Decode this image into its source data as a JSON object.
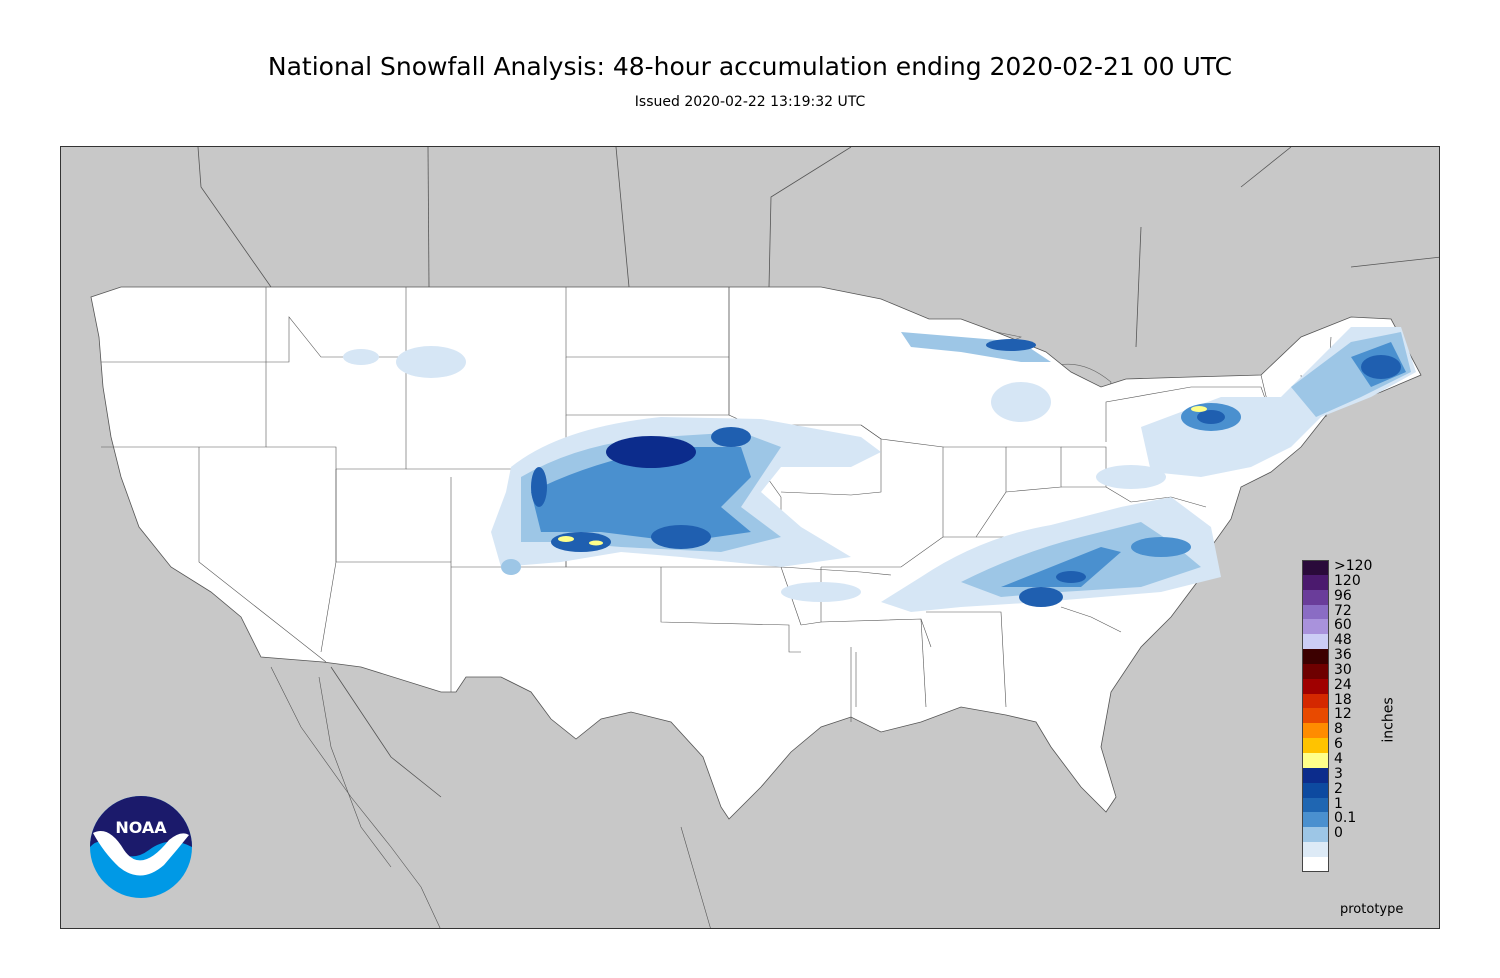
{
  "header": {
    "title": "National Snowfall Analysis: 48-hour accumulation ending 2020-02-21 00 UTC",
    "subtitle": "Issued 2020-02-22 13:19:32 UTC"
  },
  "legend": {
    "unit_label": "inches",
    "levels": [
      {
        "label": ">120",
        "color": "#2a0a3a"
      },
      {
        "label": "120",
        "color": "#4b1a6e"
      },
      {
        "label": "96",
        "color": "#6a3d9a"
      },
      {
        "label": "72",
        "color": "#8a6cc4"
      },
      {
        "label": "60",
        "color": "#a992dc"
      },
      {
        "label": "48",
        "color": "#cccdf5"
      },
      {
        "label": "36",
        "color": "#3c0000"
      },
      {
        "label": "30",
        "color": "#6e0000"
      },
      {
        "label": "24",
        "color": "#a00000"
      },
      {
        "label": "18",
        "color": "#d42800"
      },
      {
        "label": "12",
        "color": "#e84a00"
      },
      {
        "label": "8",
        "color": "#ff8c00"
      },
      {
        "label": "6",
        "color": "#ffc300"
      },
      {
        "label": "4",
        "color": "#ffff8a"
      },
      {
        "label": "3",
        "color": "#0c2c8c"
      },
      {
        "label": "2",
        "color": "#0d4aa0"
      },
      {
        "label": "1",
        "color": "#1f66b2"
      },
      {
        "label": "0.1",
        "color": "#4a90cf"
      },
      {
        "label": "0",
        "color": "#9dc6e6"
      }
    ],
    "light_levels": [
      {
        "color": "#ddeaf6"
      },
      {
        "color": "#ffffff"
      }
    ]
  },
  "footer": {
    "note": "prototype"
  },
  "logo": {
    "text": "NOAA",
    "colors": {
      "navy": "#1b1a6b",
      "sky": "#0099e6"
    }
  },
  "map": {
    "land_color": "#ffffff",
    "outside_color": "#c8c8c8",
    "snow_colors": {
      "light": "#d6e6f5",
      "mid": "#9dc6e6",
      "blue": "#4a90cf",
      "dark": "#1f5fb0",
      "navy": "#0c2c8c",
      "yellow": "#ffff8a"
    }
  }
}
